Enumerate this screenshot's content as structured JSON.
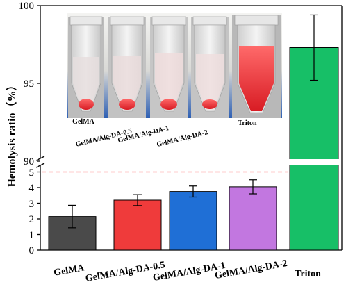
{
  "chart_data": {
    "type": "bar",
    "ylabel": "Hemolysis ratio（%）",
    "categories": [
      "GelMA",
      "GelMA/Alg-DA-0.5",
      "GelMA/Alg-DA-1",
      "GelMA/Alg-DA-2",
      "Triton"
    ],
    "values": [
      2.15,
      3.2,
      3.75,
      4.05,
      97.3
    ],
    "errors": [
      0.72,
      0.35,
      0.35,
      0.45,
      2.1
    ],
    "colors": [
      "#4a4a4a",
      "#ef3b3b",
      "#1f6fd6",
      "#c277e0",
      "#17bf67"
    ],
    "y_axis_broken": true,
    "lower_ylim": [
      0,
      5.6
    ],
    "lower_ticks": [
      "0",
      "1",
      "2",
      "3",
      "4",
      "5"
    ],
    "upper_ylim": [
      89.7,
      100
    ],
    "upper_ticks": [
      "90",
      "95",
      "100"
    ],
    "threshold_line": {
      "value": 5,
      "color": "#ff3b3b",
      "style": "dashed"
    }
  },
  "inset": {
    "labels": [
      "GelMA",
      "GelMA/Alg-DA-0.5",
      "GelMA/Alg-DA-1",
      "GelMA/Alg-DA-2",
      "Triton"
    ]
  }
}
